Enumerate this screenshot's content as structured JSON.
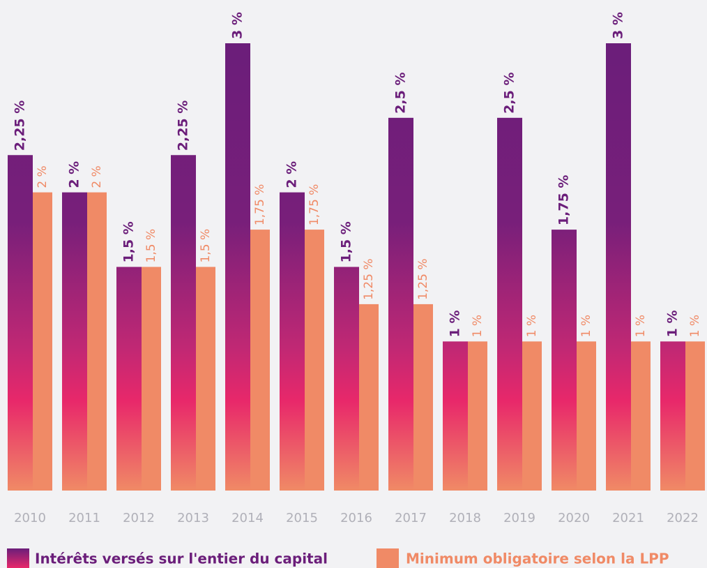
{
  "chart_data": {
    "type": "bar",
    "categories": [
      "2010",
      "2011",
      "2012",
      "2013",
      "2014",
      "2015",
      "2016",
      "2017",
      "2018",
      "2019",
      "2020",
      "2021",
      "2022"
    ],
    "series": [
      {
        "name": "Intérêts versés sur l'entier du capital",
        "color": "#6b1e7a",
        "values": [
          2.25,
          2,
          1.5,
          2.25,
          3,
          2,
          1.5,
          2.5,
          1,
          2.5,
          1.75,
          3,
          1
        ],
        "value_labels": [
          "2,25 %",
          "2 %",
          "1,5 %",
          "2,25 %",
          "3 %",
          "2 %",
          "1,5 %",
          "2,5 %",
          "1 %",
          "2,5 %",
          "1,75 %",
          "3 %",
          "1 %"
        ]
      },
      {
        "name": "Minimum obligatoire selon la LPP",
        "color": "#f08a66",
        "values": [
          2,
          2,
          1.5,
          1.5,
          1.75,
          1.75,
          1.25,
          1.25,
          1,
          1,
          1,
          1,
          1
        ],
        "value_labels": [
          "2 %",
          "2 %",
          "1,5 %",
          "1,5 %",
          "1,75 %",
          "1,75 %",
          "1,25 %",
          "1,25 %",
          "1 %",
          "1 %",
          "1 %",
          "1 %",
          "1 %"
        ]
      }
    ],
    "ylim": [
      0,
      3
    ],
    "grid": false
  }
}
